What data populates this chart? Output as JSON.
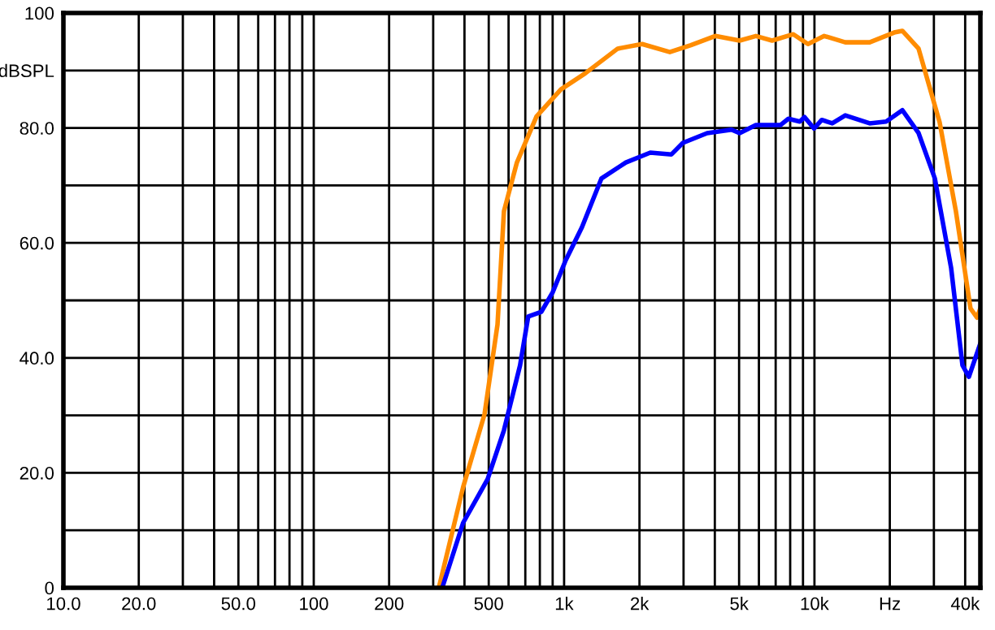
{
  "chart_data": {
    "type": "line",
    "log": "x",
    "grid": true,
    "legend": false,
    "marker": "none",
    "line_style": "solid",
    "xlim": [
      10,
      46000
    ],
    "ylim": [
      0,
      100
    ],
    "xticks": [
      {
        "value": 10,
        "label": "10.0"
      },
      {
        "value": 20,
        "label": "20.0"
      },
      {
        "value": 30,
        "label": null
      },
      {
        "value": 40,
        "label": null
      },
      {
        "value": 50,
        "label": "50.0"
      },
      {
        "value": 60,
        "label": null
      },
      {
        "value": 70,
        "label": null
      },
      {
        "value": 80,
        "label": null
      },
      {
        "value": 90,
        "label": null
      },
      100,
      200,
      {
        "value": 300,
        "label": null
      },
      {
        "value": 400,
        "label": null
      },
      500,
      {
        "value": 600,
        "label": null
      },
      {
        "value": 700,
        "label": null
      },
      {
        "value": 800,
        "label": null
      },
      {
        "value": 900,
        "label": null
      },
      {
        "value": 1000,
        "label": "1k"
      },
      {
        "value": 2000,
        "label": "2k"
      },
      {
        "value": 3000,
        "label": null
      },
      {
        "value": 4000,
        "label": null
      },
      {
        "value": 5000,
        "label": "5k"
      },
      {
        "value": 6000,
        "label": null
      },
      {
        "value": 7000,
        "label": null
      },
      {
        "value": 8000,
        "label": null
      },
      {
        "value": 9000,
        "label": null
      },
      {
        "value": 10000,
        "label": "10k"
      },
      {
        "value": 20000,
        "label": "Hz"
      },
      {
        "value": 30000,
        "label": null
      },
      {
        "value": 40000,
        "label": "40k"
      }
    ],
    "yticks": [
      0,
      {
        "value": 10,
        "label": null
      },
      {
        "value": 20,
        "label": "20.0"
      },
      {
        "value": 30,
        "label": null
      },
      {
        "value": 40,
        "label": "40.0"
      },
      {
        "value": 50,
        "label": null
      },
      {
        "value": 60,
        "label": "60.0"
      },
      {
        "value": 70,
        "label": null
      },
      {
        "value": 80,
        "label": "80.0"
      },
      {
        "value": 90,
        "label": "dBSPL"
      },
      100
    ],
    "series": [
      {
        "color": "#ff8c00",
        "x": [
          316,
          395,
          481,
          542,
          575,
          648,
          776,
          971,
          1214,
          1637,
          2050,
          2644,
          3210,
          4015,
          5024,
          5836,
          6774,
          8235,
          9420,
          10940,
          13280,
          16620,
          20810,
          22440,
          26060,
          31620,
          36730,
          42010,
          44600,
          45900
        ],
        "values": [
          0,
          17.5,
          30.2,
          45.8,
          65.5,
          74,
          82,
          86.7,
          89.5,
          93.8,
          94.6,
          93.2,
          94.4,
          96,
          95.2,
          96,
          95.2,
          96.3,
          94.6,
          96,
          94.9,
          94.9,
          96.6,
          96.9,
          93.8,
          81,
          65.5,
          48.6,
          47,
          48.5
        ]
      },
      {
        "color": "#0000ff",
        "x": [
          326,
          395,
          495,
          575,
          667,
          719,
          811,
          900,
          1015,
          1178,
          1409,
          1765,
          2209,
          2685,
          2981,
          3727,
          4663,
          5024,
          5836,
          7310,
          7870,
          8740,
          9130,
          9960,
          10700,
          11780,
          13280,
          16620,
          19340,
          22440,
          26060,
          30270,
          35160,
          39020,
          41400,
          45900
        ],
        "values": [
          0,
          11.3,
          18.9,
          27.4,
          38.7,
          47.2,
          48,
          51.4,
          57,
          62.7,
          71.2,
          74,
          75.7,
          75.4,
          77.4,
          79.1,
          79.7,
          79.1,
          80.5,
          80.5,
          81.6,
          81.1,
          81.9,
          79.9,
          81.4,
          80.8,
          82.2,
          80.8,
          81.1,
          83.1,
          79.1,
          71.2,
          55.6,
          38.7,
          36.7,
          42.4
        ]
      }
    ]
  }
}
